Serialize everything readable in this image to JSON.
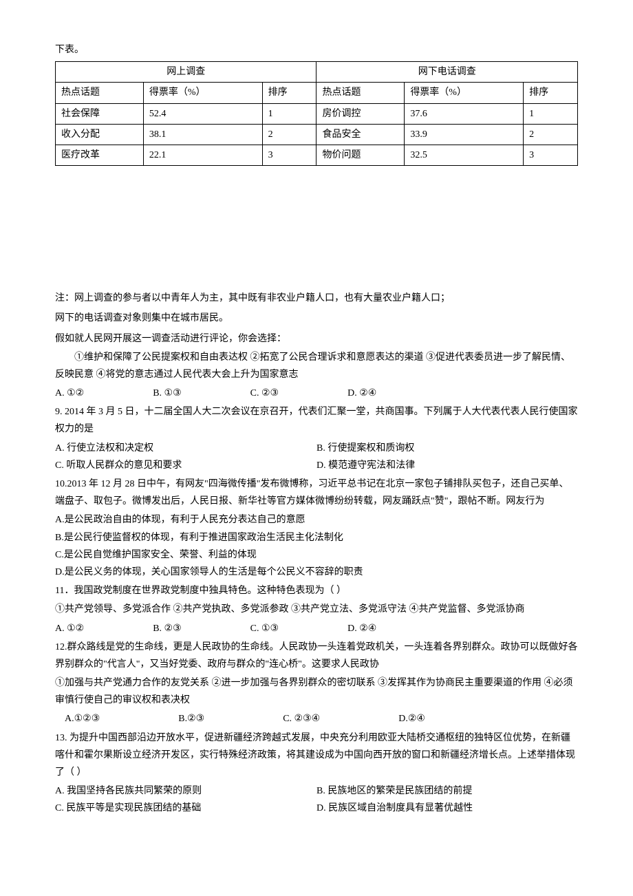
{
  "intro": "下表。",
  "table": {
    "header_main": [
      "网上调查",
      "网下电话调查"
    ],
    "columns": [
      "热点话题",
      "得票率（%）",
      "排序",
      "热点话题",
      "得票率（%）",
      "排序"
    ],
    "rows": [
      [
        "社会保障",
        "52.4",
        "1",
        "房价调控",
        "37.6",
        "1"
      ],
      [
        "收入分配",
        "38.1",
        "2",
        "食品安全",
        "33.9",
        "2"
      ],
      [
        "医疗改革",
        "22.1",
        "3",
        "物价问题",
        "32.5",
        "3"
      ]
    ]
  },
  "note_line1": "注：网上调查的参与者以中青年人为主，其中既有非农业户籍人口，也有大量农业户籍人口；",
  "note_line2": "网下的电话调查对象则集中在城市居民。",
  "q8_prompt": "假如就人民网开展这一调查活动进行评论，你会选择：",
  "q8_statements": "①维护和保障了公民提案权和自由表达权  ②拓宽了公民合理诉求和意愿表达的渠道  ③促进代表委员进一步了解民情、反映民意   ④将党的意志通过人民代表大会上升为国家意志",
  "q8_opts": {
    "a": "A. ①②",
    "b": "B. ①③",
    "c": "C. ②③",
    "d": "D. ②④"
  },
  "q9_text": "9. 2014 年 3 月 5 日，十二届全国人大二次会议在京召开，代表们汇聚一堂，共商国事。下列属于人大代表代表人民行使国家权力的是",
  "q9_opts": {
    "a": "A. 行使立法权和决定权",
    "b": "B. 行使提案权和质询权",
    "c": "C. 听取人民群众的意见和要求",
    "d": "D. 模范遵守宪法和法律"
  },
  "q10_text": "10.2013 年 12 月 28 日中午，有网友\"四海微传播\"发布微博称，习近平总书记在北京一家包子铺排队买包子，还自己买单、端盘子、取包子。微博发出后，人民日报、新华社等官方媒体微博纷纷转载，网友踊跃点\"赞\"，跟帖不断。网友行为",
  "q10_opts": {
    "a": "A.是公民政治自由的体现，有利于人民充分表达自己的意愿",
    "b": "B.是公民行使监督权的体现，有利于推进国家政治生活民主化法制化",
    "c": "C.是公民自觉维护国家安全、荣誉、利益的体现",
    "d": "D.是公民义务的体现，关心国家领导人的生活是每个公民义不容辞的职责"
  },
  "q11_text": "11．我国政党制度在世界政党制度中独具特色。这种特色表现为（     ）",
  "q11_statements": "①共产党领导、多党派合作    ②共产党执政、多党派参政  ③共产党立法、多党派守法    ④共产党监督、多党派协商",
  "q11_opts": {
    "a": "A. ①②",
    "b": "B. ②③",
    "c": "C. ①③",
    "d": "D. ②④"
  },
  "q12_text": "12.群众路线是党的生命线，更是人民政协的生命线。人民政协一头连着党政机关，一头连着各界别群众。政协可以既做好各界别群众的\"代言人\"，又当好党委、政府与群众的\"连心桥\"。这要求人民政协",
  "q12_statements": "①加强与共产党通力合作的友党关系  ②进一步加强与各界别群众的密切联系  ③发挥其作为协商民主重要渠道的作用  ④必须审慎行使自己的审议权和表决权",
  "q12_opts": {
    "a": "A.①②③",
    "b": "B.②③",
    "c": "C. ②③④",
    "d": "D.②④"
  },
  "q13_text": "13. 为提升中国西部沿边开放水平，促进新疆经济跨越式发展，中央充分利用欧亚大陆桥交通枢纽的独特区位优势，在新疆喀什和霍尔果斯设立经济开发区，实行特殊经济政策，将其建设成为中国向西开放的窗口和新疆经济增长点。上述举措体现了（     ）",
  "q13_opts": {
    "a": "A. 我国坚持各民族共同繁荣的原则",
    "b": "B. 民族地区的繁荣是民族团结的前提",
    "c": "C. 民族平等是实现民族团结的基础",
    "d": "D. 民族区域自治制度具有显著优越性"
  }
}
